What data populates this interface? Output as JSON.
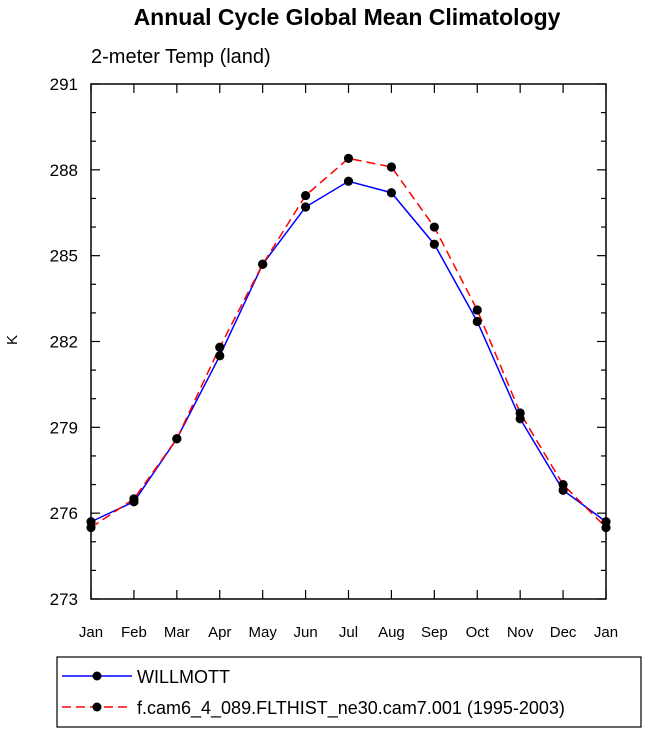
{
  "chart_data": {
    "type": "line",
    "title": "Annual Cycle Global Mean Climatology",
    "subtitle": "2-meter Temp (land)",
    "xlabel": "",
    "ylabel": "K",
    "categories": [
      "Jan",
      "Feb",
      "Mar",
      "Apr",
      "May",
      "Jun",
      "Jul",
      "Aug",
      "Sep",
      "Oct",
      "Nov",
      "Dec",
      "Jan"
    ],
    "ylim": [
      273,
      291
    ],
    "yticks": [
      273,
      276,
      279,
      282,
      285,
      288,
      291
    ],
    "grid": false,
    "legend_position": "bottom",
    "series": [
      {
        "name": "WILLMOTT",
        "color": "#0000ff",
        "dash": "solid",
        "values": [
          275.7,
          276.4,
          278.6,
          281.5,
          284.7,
          286.7,
          287.6,
          287.2,
          285.4,
          282.7,
          279.3,
          276.8,
          275.7
        ]
      },
      {
        "name": "f.cam6_4_089.FLTHIST_ne30.cam7.001 (1995-2003)",
        "color": "#ff0000",
        "dash": "dashed",
        "values": [
          275.5,
          276.5,
          278.6,
          281.8,
          284.7,
          287.1,
          288.4,
          288.1,
          286.0,
          283.1,
          279.5,
          277.0,
          275.5
        ]
      }
    ]
  }
}
